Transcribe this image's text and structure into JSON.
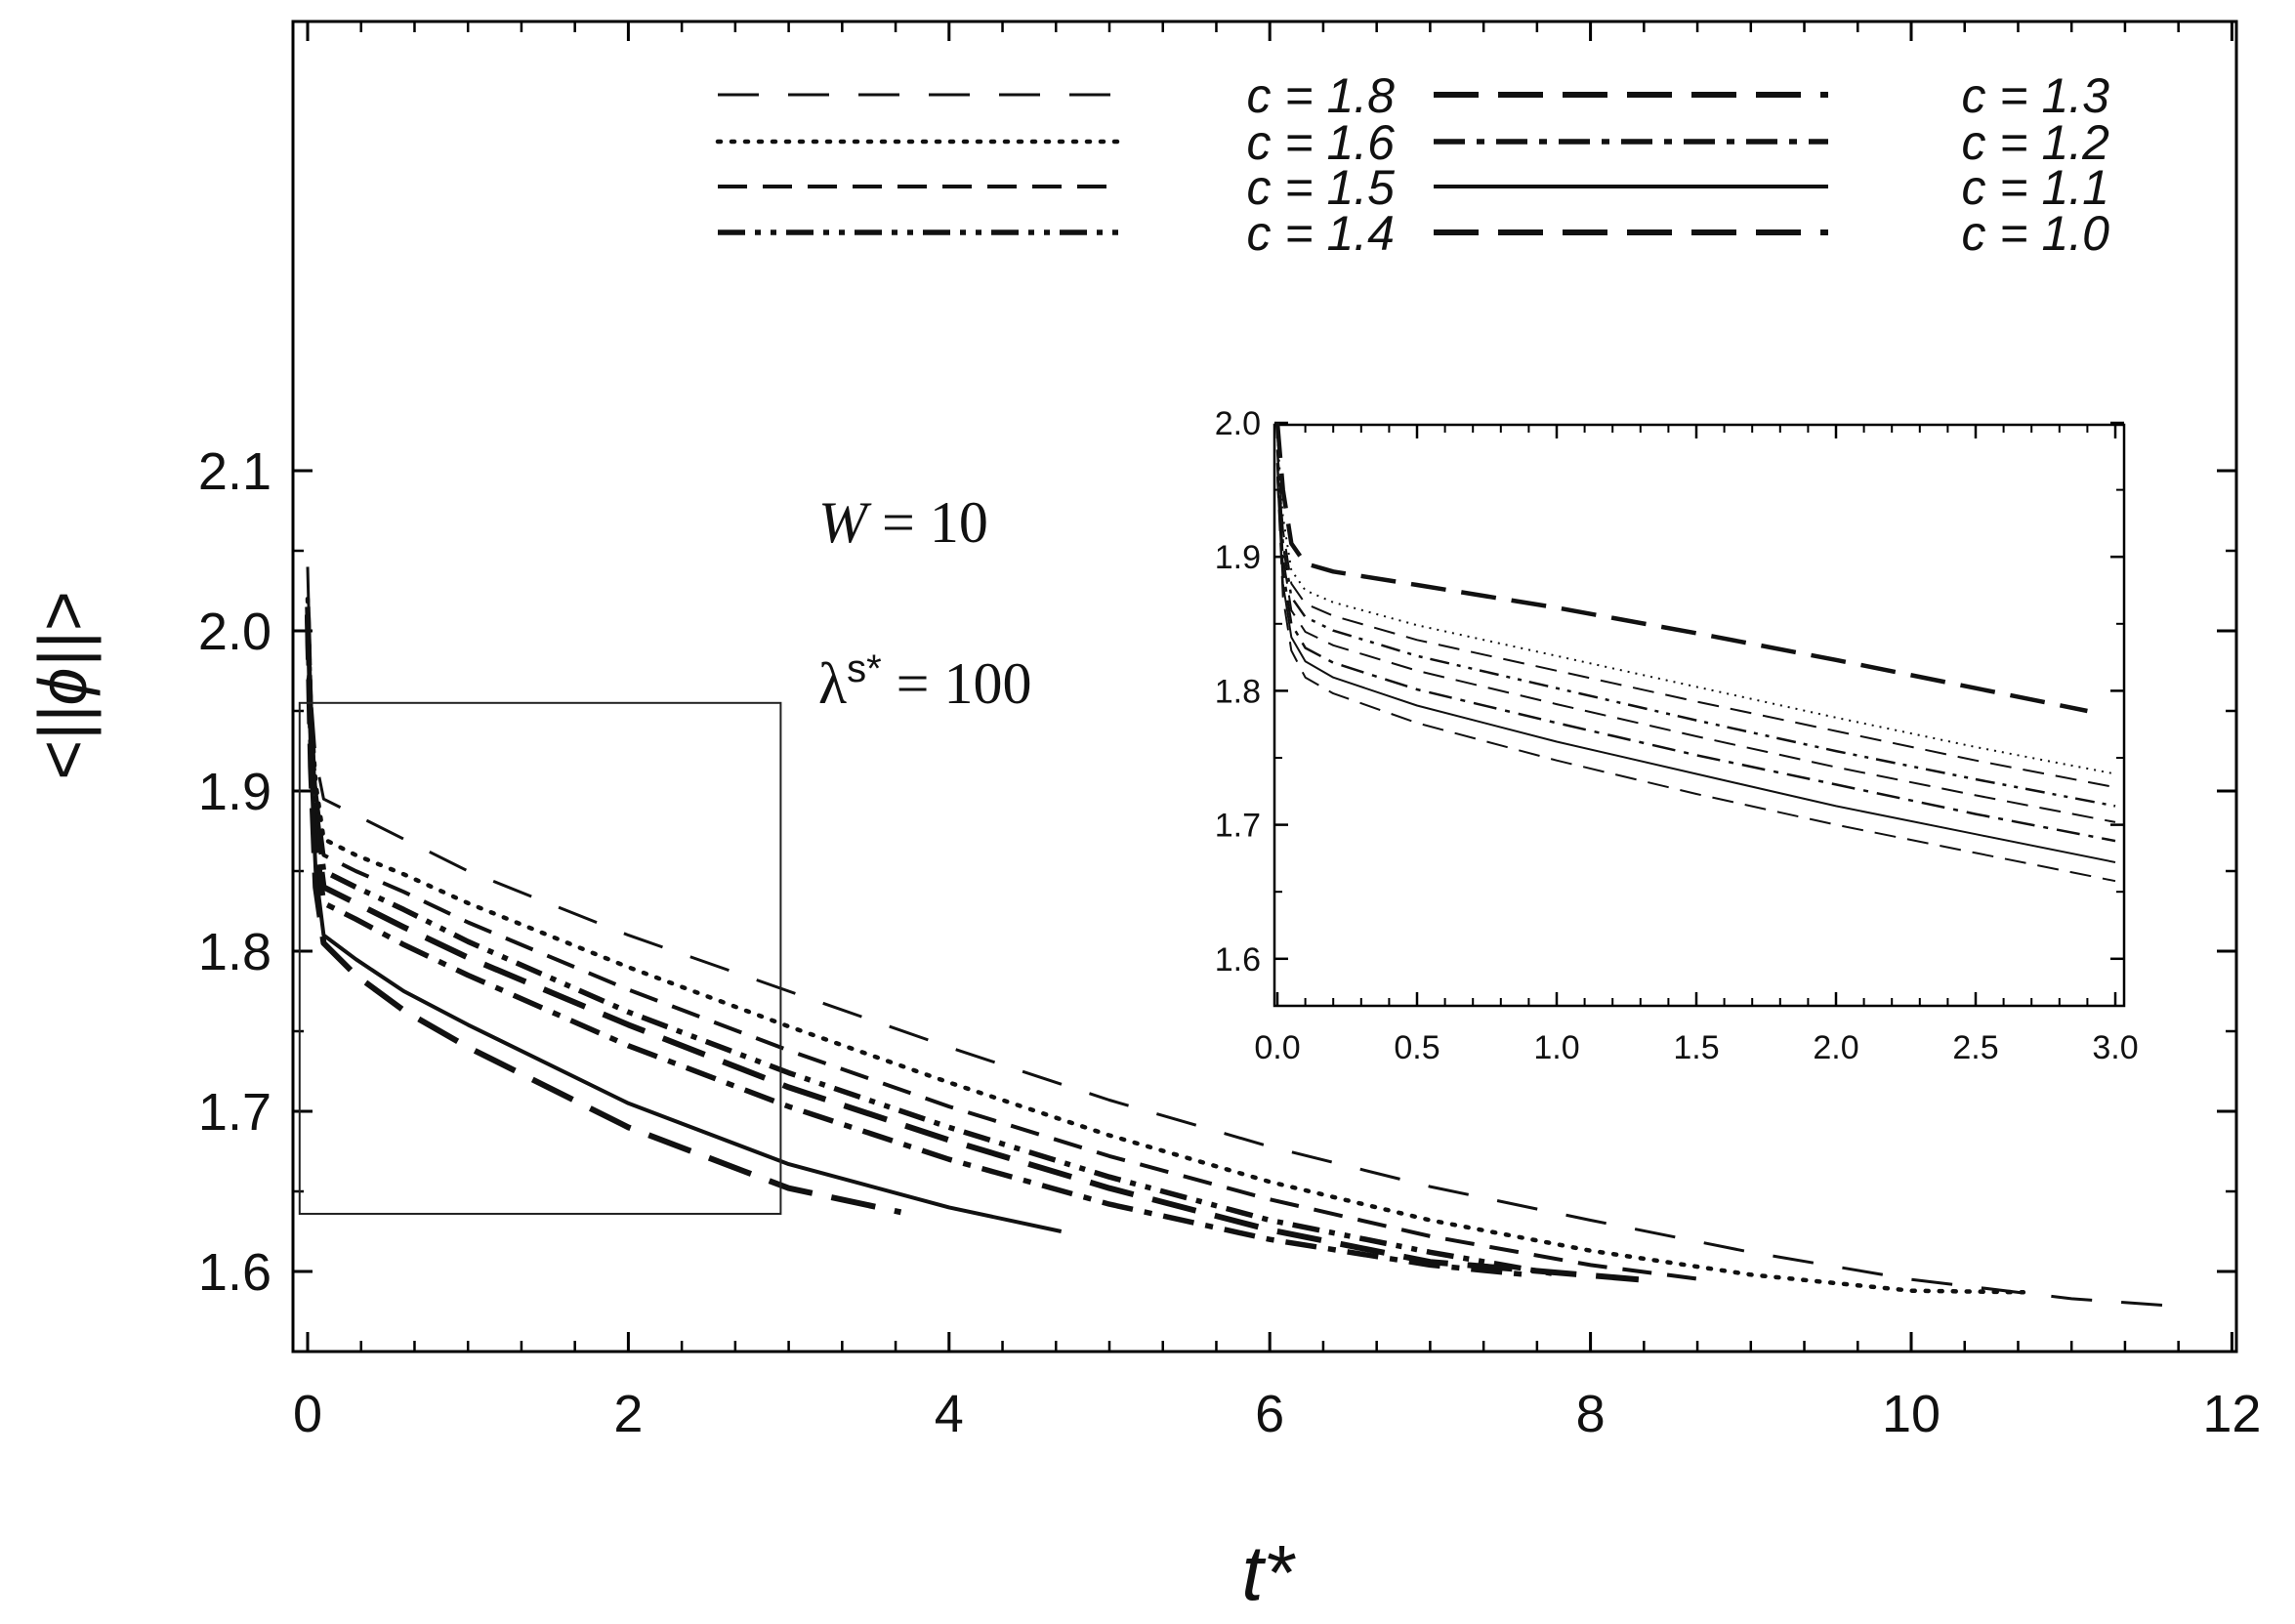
{
  "chart_data": [
    {
      "type": "line",
      "xlabel": "t*",
      "ylabel": "<||ϕ||>",
      "xlim": [
        -0.15,
        12
      ],
      "ylim": [
        1.575,
        2.115
      ],
      "xticks": [
        0,
        2,
        4,
        6,
        8,
        10,
        12
      ],
      "yticks": [
        1.6,
        1.7,
        1.8,
        1.9,
        2.0,
        2.1
      ],
      "xtick_labels": [
        "0",
        "2",
        "4",
        "6",
        "8",
        "10",
        "12"
      ],
      "ytick_labels": [
        "1.6",
        "1.7",
        "1.8",
        "1.9",
        "2.0",
        "2.1"
      ],
      "legend_placement": "top",
      "annotations": [
        {
          "text_main": "W",
          "text_rest": " = 10"
        },
        {
          "text_main": "λ",
          "text_sup": "s*",
          "text_rest": " = 100"
        }
      ],
      "zoom_box": {
        "x": [
          -0.05,
          2.95
        ],
        "y": [
          1.636,
          1.955
        ]
      },
      "series": [
        {
          "name": "c = 1.8",
          "style": "dash-thin",
          "x": [
            0,
            0.02,
            0.05,
            0.1,
            0.3,
            0.6,
            1,
            2,
            3,
            4,
            5,
            6,
            7,
            8,
            9,
            10,
            11,
            11.7
          ],
          "y": [
            2.04,
            1.96,
            1.92,
            1.895,
            1.885,
            1.87,
            1.85,
            1.81,
            1.775,
            1.74,
            1.707,
            1.678,
            1.653,
            1.632,
            1.612,
            1.595,
            1.583,
            1.578
          ]
        },
        {
          "name": "c = 1.6",
          "style": "dot",
          "x": [
            0,
            0.02,
            0.05,
            0.1,
            0.3,
            0.6,
            1,
            2,
            3,
            4,
            5,
            6,
            7,
            8,
            9,
            10,
            10.7
          ],
          "y": [
            2.02,
            1.95,
            1.905,
            1.87,
            1.86,
            1.848,
            1.83,
            1.79,
            1.753,
            1.718,
            1.685,
            1.656,
            1.632,
            1.613,
            1.598,
            1.588,
            1.587
          ]
        },
        {
          "name": "c = 1.5",
          "style": "dash-medium",
          "x": [
            0,
            0.02,
            0.05,
            0.1,
            0.3,
            0.6,
            1,
            2,
            3,
            4,
            5,
            6,
            7,
            8,
            8.7
          ],
          "y": [
            2.015,
            1.945,
            1.9,
            1.86,
            1.85,
            1.837,
            1.818,
            1.776,
            1.738,
            1.703,
            1.672,
            1.645,
            1.622,
            1.604,
            1.595
          ]
        },
        {
          "name": "c = 1.4",
          "style": "dash-dot-dot",
          "x": [
            0,
            0.02,
            0.05,
            0.1,
            0.3,
            0.6,
            1,
            2,
            3,
            4,
            5,
            6,
            7,
            7.8
          ],
          "y": [
            2.015,
            1.94,
            1.89,
            1.85,
            1.84,
            1.826,
            1.806,
            1.762,
            1.724,
            1.69,
            1.659,
            1.632,
            1.612,
            1.598
          ]
        },
        {
          "name": "c = 1.3",
          "style": "dash-long-thick",
          "x": [
            0,
            0.02,
            0.05,
            0.1,
            0.3,
            0.6,
            1,
            2,
            3,
            4,
            5,
            6,
            7,
            8.3
          ],
          "y": [
            2.01,
            1.935,
            1.88,
            1.84,
            1.83,
            1.815,
            1.796,
            1.754,
            1.715,
            1.682,
            1.652,
            1.626,
            1.606,
            1.595
          ]
        },
        {
          "name": "c = 1.2",
          "style": "dash-dot",
          "x": [
            0,
            0.02,
            0.05,
            0.1,
            0.3,
            0.6,
            1,
            2,
            3,
            4,
            5,
            6,
            7,
            7.6
          ],
          "y": [
            2.01,
            1.93,
            1.87,
            1.83,
            1.82,
            1.804,
            1.785,
            1.741,
            1.703,
            1.67,
            1.642,
            1.62,
            1.604,
            1.598
          ]
        },
        {
          "name": "c = 1.1",
          "style": "solid",
          "x": [
            0,
            0.02,
            0.05,
            0.1,
            0.3,
            0.6,
            1,
            2,
            3,
            4,
            4.7
          ],
          "y": [
            2.01,
            1.92,
            1.85,
            1.81,
            1.795,
            1.775,
            1.754,
            1.705,
            1.667,
            1.64,
            1.625
          ]
        },
        {
          "name": "c = 1.0",
          "style": "dash-long-thick",
          "x": [
            0,
            0.02,
            0.05,
            0.1,
            0.3,
            0.6,
            1,
            2,
            3,
            3.7
          ],
          "y": [
            2.01,
            1.915,
            1.84,
            1.805,
            1.785,
            1.763,
            1.74,
            1.69,
            1.652,
            1.637
          ]
        }
      ]
    },
    {
      "type": "line",
      "placement": "inset-right",
      "xlim": [
        0,
        3.0
      ],
      "ylim": [
        1.575,
        2.0
      ],
      "xticks": [
        0,
        0.5,
        1.0,
        1.5,
        2.0,
        2.5,
        3.0
      ],
      "yticks": [
        1.6,
        1.7,
        1.8,
        1.9,
        2.0
      ],
      "xtick_labels": [
        "0.0",
        "0.5",
        "1.0",
        "1.5",
        "2.0",
        "2.5",
        "3.0"
      ],
      "ytick_labels": [
        "1.6",
        "1.7",
        "1.8",
        "1.9",
        "2.0"
      ],
      "series": [
        {
          "name": "c = 1.8",
          "style": "dash-long-thick",
          "x": [
            0,
            0.02,
            0.05,
            0.1,
            0.2,
            0.5,
            1,
            1.5,
            2,
            2.5,
            2.9
          ],
          "y": [
            2.0,
            1.95,
            1.91,
            1.895,
            1.889,
            1.879,
            1.862,
            1.843,
            1.823,
            1.802,
            1.785
          ]
        },
        {
          "name": "c = 1.6",
          "style": "dot",
          "x": [
            0,
            0.02,
            0.05,
            0.1,
            0.2,
            0.5,
            1,
            1.5,
            2,
            2.5,
            3.0
          ],
          "y": [
            1.99,
            1.93,
            1.89,
            1.875,
            1.866,
            1.849,
            1.826,
            1.803,
            1.78,
            1.758,
            1.738
          ]
        },
        {
          "name": "c = 1.5",
          "style": "dash-medium",
          "x": [
            0,
            0.02,
            0.05,
            0.1,
            0.2,
            0.5,
            1,
            1.5,
            2,
            2.5,
            3.0
          ],
          "y": [
            1.98,
            1.92,
            1.88,
            1.865,
            1.856,
            1.838,
            1.815,
            1.792,
            1.77,
            1.748,
            1.728
          ]
        },
        {
          "name": "c = 1.4",
          "style": "dash-dot-dot",
          "x": [
            0,
            0.02,
            0.05,
            0.1,
            0.2,
            0.5,
            1,
            1.5,
            2,
            2.5,
            3.0
          ],
          "y": [
            1.98,
            1.91,
            1.87,
            1.855,
            1.845,
            1.826,
            1.802,
            1.778,
            1.755,
            1.734,
            1.714
          ]
        },
        {
          "name": "c = 1.3",
          "style": "dash-medium",
          "x": [
            0,
            0.02,
            0.05,
            0.1,
            0.2,
            0.5,
            1,
            1.5,
            2,
            2.5,
            3.0
          ],
          "y": [
            1.97,
            1.9,
            1.86,
            1.844,
            1.834,
            1.815,
            1.79,
            1.766,
            1.743,
            1.722,
            1.702
          ]
        },
        {
          "name": "c = 1.2",
          "style": "dash-dot",
          "x": [
            0,
            0.02,
            0.05,
            0.1,
            0.2,
            0.5,
            1,
            1.5,
            2,
            2.5,
            3.0
          ],
          "y": [
            1.97,
            1.89,
            1.85,
            1.832,
            1.821,
            1.801,
            1.776,
            1.752,
            1.73,
            1.708,
            1.688
          ]
        },
        {
          "name": "c = 1.1",
          "style": "solid",
          "x": [
            0,
            0.02,
            0.05,
            0.1,
            0.2,
            0.5,
            1,
            1.5,
            2,
            2.5,
            3.0
          ],
          "y": [
            1.96,
            1.88,
            1.84,
            1.822,
            1.81,
            1.789,
            1.762,
            1.738,
            1.714,
            1.693,
            1.672
          ]
        },
        {
          "name": "c = 1.0",
          "style": "dash-medium",
          "x": [
            0,
            0.02,
            0.05,
            0.1,
            0.2,
            0.5,
            1,
            1.5,
            2,
            2.5,
            3.0
          ],
          "y": [
            1.96,
            1.87,
            1.83,
            1.81,
            1.798,
            1.776,
            1.748,
            1.723,
            1.7,
            1.679,
            1.658
          ]
        }
      ]
    }
  ]
}
